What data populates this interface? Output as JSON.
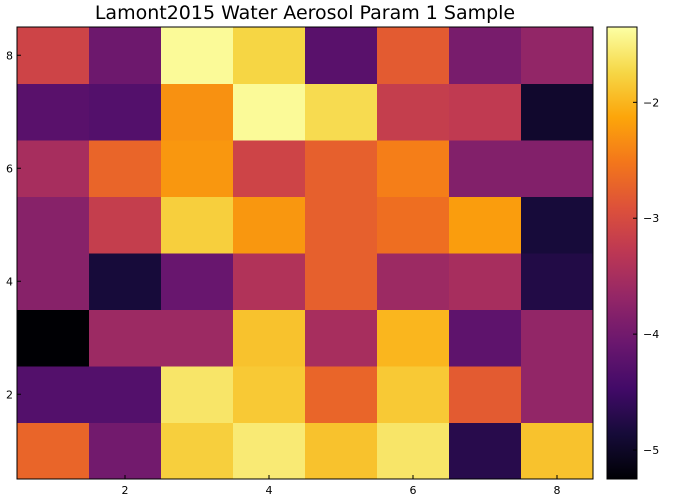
{
  "chart_data": {
    "type": "heatmap",
    "title": "Lamont2015 Water Aerosol Param 1 Sample",
    "xlabel": "",
    "ylabel": "",
    "x": [
      1,
      2,
      3,
      4,
      5,
      6,
      7,
      8
    ],
    "y": [
      1,
      2,
      3,
      4,
      5,
      6,
      7,
      8
    ],
    "xlim": [
      0.5,
      8.5
    ],
    "ylim": [
      0.5,
      8.5
    ],
    "x_ticks": [
      2,
      4,
      6,
      8
    ],
    "y_ticks": [
      2,
      4,
      6,
      8
    ],
    "colormap": "inferno",
    "clim": [
      -5.25,
      -1.35
    ],
    "colorbar_ticks": [
      -5,
      -4,
      -3,
      -2
    ],
    "colorbar_tick_labels": [
      "−5",
      "−4",
      "−3",
      "−2"
    ],
    "grid": false,
    "values": [
      [
        -2.7,
        -4.0,
        -1.8,
        -1.55,
        -1.9,
        -1.6,
        -4.7,
        -1.9
      ],
      [
        -4.3,
        -4.3,
        -1.6,
        -1.85,
        -2.7,
        -1.85,
        -2.8,
        -3.7
      ],
      [
        -5.3,
        -3.6,
        -3.6,
        -1.9,
        -3.5,
        -2.0,
        -4.2,
        -3.7
      ],
      [
        -3.8,
        -4.85,
        -4.1,
        -3.4,
        -2.75,
        -3.6,
        -3.5,
        -4.75
      ],
      [
        -3.8,
        -3.2,
        -1.8,
        -2.25,
        -2.75,
        -2.6,
        -2.2,
        -4.85
      ],
      [
        -3.5,
        -2.7,
        -2.25,
        -3.1,
        -2.75,
        -2.45,
        -3.85,
        -3.85
      ],
      [
        -4.25,
        -4.3,
        -2.3,
        -1.4,
        -1.7,
        -3.2,
        -3.25,
        -4.95
      ],
      [
        -3.1,
        -4.05,
        -1.4,
        -1.75,
        -4.25,
        -2.8,
        -3.95,
        -3.7
      ]
    ]
  }
}
